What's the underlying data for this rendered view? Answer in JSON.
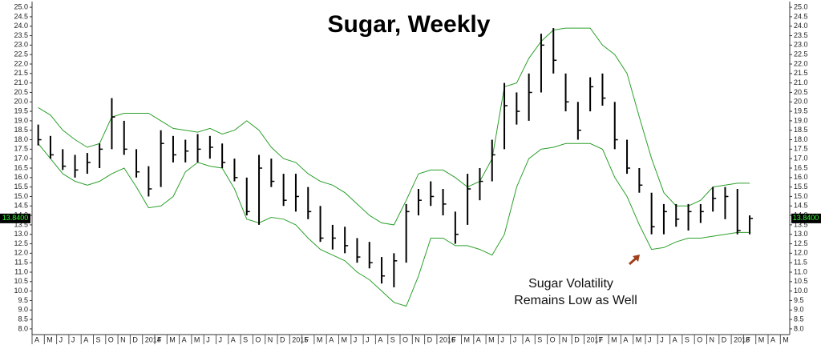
{
  "chart_data": {
    "type": "ohlc",
    "title": "Sugar, Weekly",
    "annotation": [
      "Sugar Volatility",
      "Remains Low as Well"
    ],
    "last_price": {
      "value": 13.84,
      "label": "13.8400"
    },
    "categories": [
      "A",
      "M",
      "J",
      "J",
      "A",
      "S",
      "O",
      "N",
      "D",
      "2014",
      "F",
      "M",
      "A",
      "M",
      "J",
      "J",
      "A",
      "S",
      "O",
      "N",
      "D",
      "2015",
      "F",
      "M",
      "A",
      "M",
      "J",
      "J",
      "A",
      "S",
      "O",
      "N",
      "D",
      "2016",
      "F",
      "M",
      "A",
      "M",
      "J",
      "J",
      "A",
      "S",
      "O",
      "N",
      "D",
      "2017",
      "F",
      "M",
      "A",
      "M",
      "J",
      "J",
      "A",
      "S",
      "O",
      "N",
      "D",
      "2018",
      "F",
      "M",
      "A",
      "M"
    ],
    "low": [
      17.7,
      17.0,
      16.4,
      16.0,
      16.2,
      16.5,
      17.5,
      17.2,
      16.0,
      15.0,
      15.5,
      16.8,
      16.8,
      16.8,
      17.0,
      16.5,
      15.8,
      14.0,
      13.5,
      15.5,
      14.5,
      14.2,
      13.8,
      12.6,
      12.2,
      12.0,
      11.5,
      11.2,
      10.4,
      10.2,
      11.5,
      14.0,
      14.5,
      14.0,
      12.5,
      13.5,
      14.8,
      15.8,
      17.5,
      18.8,
      19.0,
      20.5,
      21.5,
      19.5,
      18.0,
      19.5,
      19.8,
      17.5,
      16.2,
      15.2,
      13.0,
      13.0,
      13.4,
      13.2,
      13.6,
      14.2,
      13.8,
      13.0,
      13.0,
      null,
      null,
      null
    ],
    "high": [
      18.8,
      18.2,
      17.5,
      17.2,
      17.3,
      17.8,
      20.2,
      19.0,
      17.5,
      16.6,
      18.5,
      18.2,
      18.0,
      18.3,
      18.2,
      17.8,
      17.0,
      16.0,
      17.2,
      17.0,
      16.2,
      16.2,
      15.5,
      14.5,
      13.5,
      13.4,
      12.8,
      12.6,
      11.8,
      12.0,
      14.6,
      15.4,
      15.8,
      15.4,
      14.2,
      16.2,
      16.5,
      18.0,
      21.0,
      20.5,
      21.5,
      23.6,
      23.9,
      21.5,
      20.0,
      21.3,
      21.5,
      20.0,
      18.0,
      16.5,
      15.2,
      14.6,
      14.6,
      14.6,
      14.6,
      15.5,
      15.5,
      15.4,
      14.0,
      null,
      null,
      null
    ],
    "close": [
      18.0,
      17.2,
      16.6,
      16.4,
      16.8,
      17.5,
      19.2,
      17.5,
      16.3,
      15.4,
      17.8,
      17.2,
      17.4,
      17.5,
      17.6,
      16.8,
      16.0,
      14.2,
      16.5,
      15.8,
      14.8,
      15.0,
      14.2,
      12.8,
      12.8,
      12.4,
      11.8,
      11.5,
      10.8,
      11.6,
      14.2,
      14.8,
      15.0,
      14.6,
      13.0,
      15.4,
      15.8,
      17.2,
      19.8,
      19.5,
      20.5,
      23.0,
      22.2,
      20.0,
      18.5,
      20.8,
      20.2,
      18.0,
      16.5,
      15.6,
      13.4,
      14.2,
      13.8,
      14.2,
      14.2,
      14.9,
      15.0,
      13.2,
      13.84,
      null,
      null,
      null
    ],
    "upper_band": [
      19.7,
      19.3,
      18.5,
      18.0,
      17.6,
      17.8,
      19.2,
      19.4,
      19.4,
      19.4,
      19.0,
      18.6,
      18.5,
      18.4,
      18.6,
      18.3,
      18.5,
      19.0,
      18.5,
      17.6,
      17.0,
      16.8,
      16.2,
      15.8,
      15.6,
      15.2,
      14.6,
      14.0,
      13.6,
      13.5,
      14.8,
      16.2,
      16.4,
      16.4,
      16.0,
      15.5,
      15.8,
      17.0,
      20.8,
      21.0,
      22.3,
      23.2,
      23.8,
      23.9,
      23.9,
      23.9,
      23.0,
      22.5,
      21.5,
      19.2,
      17.0,
      15.2,
      14.5,
      14.5,
      14.8,
      15.5,
      15.6,
      15.7,
      15.7,
      null,
      null,
      null
    ],
    "lower_band": [
      17.8,
      17.0,
      16.2,
      15.8,
      15.6,
      15.8,
      16.2,
      16.5,
      15.5,
      14.4,
      14.5,
      15.0,
      16.3,
      16.8,
      16.6,
      16.5,
      15.4,
      13.8,
      13.6,
      13.9,
      13.8,
      13.5,
      12.8,
      12.2,
      11.9,
      11.6,
      11.0,
      10.6,
      10.0,
      9.4,
      9.2,
      10.8,
      12.8,
      12.8,
      12.4,
      12.4,
      12.2,
      11.9,
      13.0,
      15.5,
      17.0,
      17.5,
      17.6,
      17.8,
      17.8,
      17.8,
      17.5,
      16.0,
      15.0,
      13.5,
      12.2,
      12.3,
      12.6,
      12.8,
      12.8,
      12.9,
      13.0,
      13.1,
      13.1,
      null,
      null,
      null
    ],
    "bar_color": "#000000",
    "band_color": "#2ca02c",
    "ylim": [
      7.7,
      25.3
    ],
    "yticks": [
      {
        "value": 8,
        "label": "8.0"
      },
      {
        "value": 8.5,
        "label": "8.5"
      },
      {
        "value": 9,
        "label": "9.0"
      },
      {
        "value": 9.5,
        "label": "9.5"
      },
      {
        "value": 10,
        "label": "10.0"
      },
      {
        "value": 10.5,
        "label": "10.5"
      },
      {
        "value": 11,
        "label": "11.0"
      },
      {
        "value": 11.5,
        "label": "11.5"
      },
      {
        "value": 12,
        "label": "12.0"
      },
      {
        "value": 12.5,
        "label": "12.5"
      },
      {
        "value": 13,
        "label": "13.0"
      },
      {
        "value": 13.5,
        "label": "13.5"
      },
      {
        "value": 14,
        "label": "14.0"
      },
      {
        "value": 14.5,
        "label": "14.5"
      },
      {
        "value": 15,
        "label": "15.0"
      },
      {
        "value": 15.5,
        "label": "15.5"
      },
      {
        "value": 16,
        "label": "16.0"
      },
      {
        "value": 16.5,
        "label": "16.5"
      },
      {
        "value": 17,
        "label": "17.0"
      },
      {
        "value": 17.5,
        "label": "17.5"
      },
      {
        "value": 18,
        "label": "18.0"
      },
      {
        "value": 18.5,
        "label": "18.5"
      },
      {
        "value": 19,
        "label": "19.0"
      },
      {
        "value": 19.5,
        "label": "19.5"
      },
      {
        "value": 20,
        "label": "20.0"
      },
      {
        "value": 20.5,
        "label": "20.5"
      },
      {
        "value": 21,
        "label": "21.0"
      },
      {
        "value": 21.5,
        "label": "21.5"
      },
      {
        "value": 22,
        "label": "22.0"
      },
      {
        "value": 22.5,
        "label": "22.5"
      },
      {
        "value": 23,
        "label": "23.0"
      },
      {
        "value": 23.5,
        "label": "23.5"
      },
      {
        "value": 24,
        "label": "24.0"
      },
      {
        "value": 24.5,
        "label": "24.5"
      },
      {
        "value": 25,
        "label": "25.0"
      }
    ]
  }
}
